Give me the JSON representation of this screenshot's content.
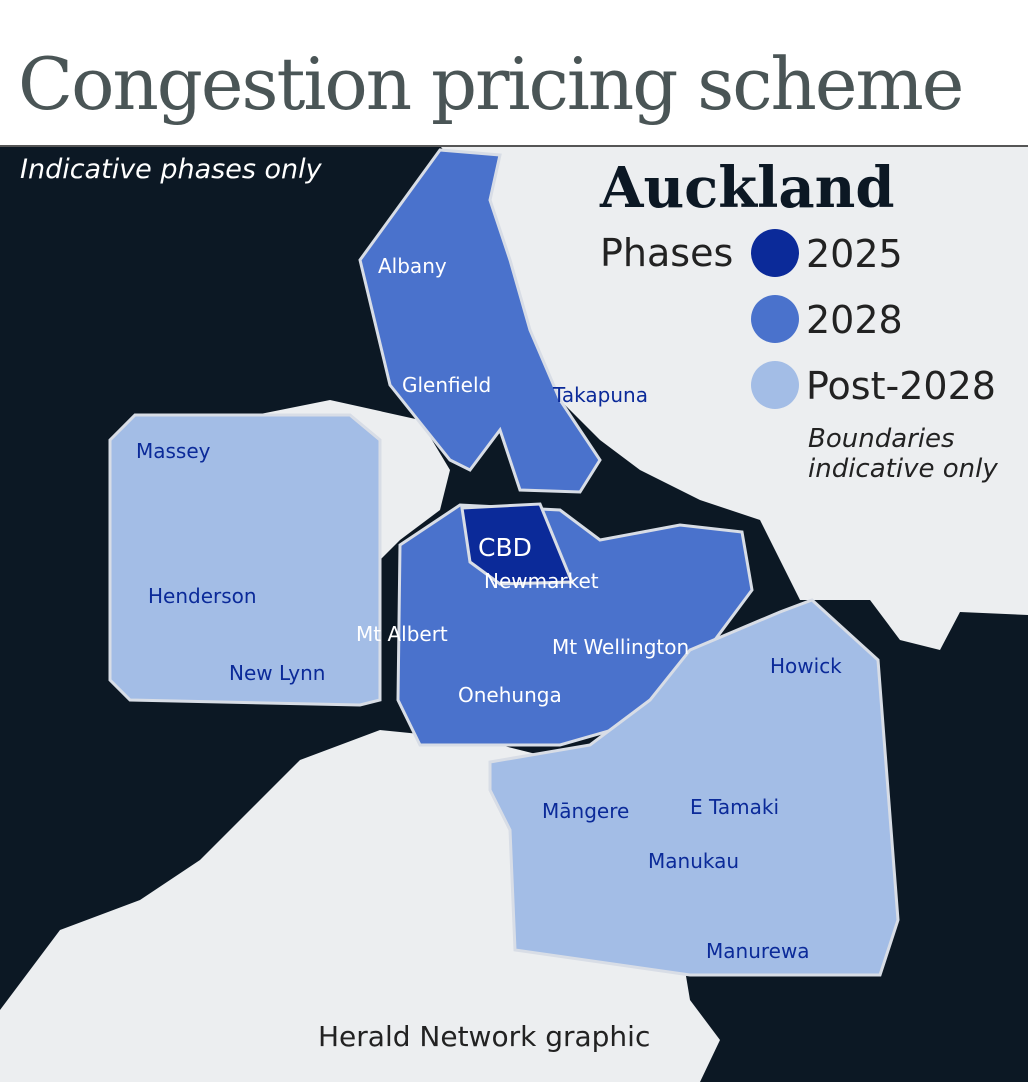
{
  "title": "Congestion pricing scheme",
  "subtitle": "Indicative phases only",
  "legend": {
    "title": "Auckland",
    "label": "Phases",
    "items": [
      {
        "name": "2025",
        "color": "#0b2a99"
      },
      {
        "name": "2028",
        "color": "#4a72cc"
      },
      {
        "name": "Post-2028",
        "color": "#a3bde6"
      }
    ],
    "note": "Boundaries indicative only"
  },
  "places": [
    "Albany",
    "Glenfield",
    "Takapuna",
    "Massey",
    "Henderson",
    "New Lynn",
    "Mt Albert",
    "CBD",
    "Newmarket",
    "Mt Wellington",
    "Onehunga",
    "Howick",
    "Māngere",
    "E Tamaki",
    "Manukau",
    "Manurewa"
  ],
  "credit": "Herald Network graphic"
}
